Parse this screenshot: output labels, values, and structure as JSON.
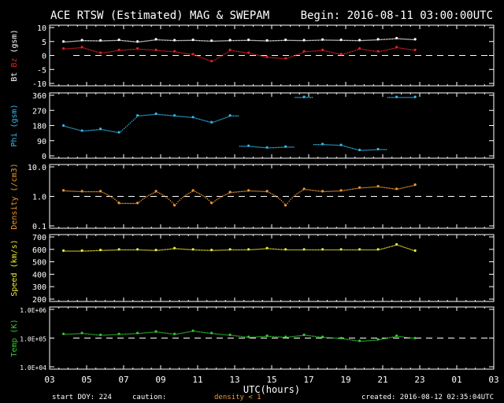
{
  "header": {
    "title": "ACE RTSW (Estimated) MAG & SWEPAM",
    "begin": "Begin: 2016-08-11 03:00:00UTC"
  },
  "footer": {
    "start_doy": "start DOY: 224",
    "caution": "caution:",
    "caution_item": "density < 1",
    "created": "created: 2016-08-12 02:35:04UTC",
    "xlabel": "UTC(hours)"
  },
  "colors": {
    "bt": "#ffffff",
    "bz": "#dd2222",
    "phi": "#33bbee",
    "density": "#ee9933",
    "speed": "#eeee33",
    "temp": "#33cc33",
    "axis": "#ffffff"
  },
  "chart_data": {
    "type": "scatter",
    "x_ticks": [
      "03",
      "05",
      "07",
      "09",
      "11",
      "13",
      "15",
      "17",
      "19",
      "21",
      "23",
      "01",
      "03"
    ],
    "x_range_hours": [
      3,
      27
    ],
    "x": [
      3.75,
      4.75,
      5.75,
      6.75,
      7.75,
      8.75,
      9.75,
      10.75,
      11.75,
      12.75,
      13.75,
      14.75,
      15.75,
      16.75,
      17.75,
      18.75,
      19.75,
      20.75,
      21.75,
      22.75
    ],
    "panels": [
      {
        "id": "mag",
        "ylabel_parts": [
          "Bt",
          "Bz",
          "(gsm)"
        ],
        "ylim": [
          -10,
          10
        ],
        "scale": "linear",
        "ticks": [
          "10",
          "5",
          "0",
          "-5",
          "-10"
        ],
        "tick_values": [
          10,
          5,
          0,
          -5,
          -10
        ],
        "dashed_ref": 0,
        "series": [
          {
            "name": "Bt",
            "color_key": "bt",
            "values": [
              5.0,
              5.5,
              5.4,
              5.6,
              5.0,
              5.8,
              5.5,
              5.6,
              5.3,
              5.5,
              5.6,
              5.4,
              5.6,
              5.5,
              5.7,
              5.6,
              5.5,
              5.8,
              6.2,
              5.8
            ]
          },
          {
            "name": "Bz",
            "color_key": "bz",
            "values": [
              2.5,
              3.0,
              1.0,
              2.0,
              2.5,
              2.0,
              1.5,
              0.5,
              -2.0,
              2.0,
              1.0,
              -0.5,
              -1.0,
              1.5,
              2.0,
              0.5,
              2.5,
              1.5,
              3.0,
              2.0
            ]
          }
        ]
      },
      {
        "id": "phi",
        "ylabel_parts": [
          "Phi (gsm)"
        ],
        "ylim": [
          0,
          360
        ],
        "scale": "linear",
        "ticks": [
          "360",
          "270",
          "180",
          "90",
          "0"
        ],
        "tick_values": [
          360,
          270,
          180,
          90,
          0
        ],
        "series": [
          {
            "name": "Phi",
            "color_key": "phi",
            "values": [
              180,
              150,
              160,
              140,
              240,
              250,
              240,
              230,
              200,
              240,
              60,
              50,
              55,
              350,
              70,
              65,
              35,
              40,
              350,
              350
            ]
          }
        ]
      },
      {
        "id": "density",
        "ylabel_parts": [
          "Density (/cm3)"
        ],
        "ylim": [
          0.1,
          10
        ],
        "scale": "log",
        "ticks": [
          "10.0",
          "1.0",
          "0.1"
        ],
        "tick_values": [
          10,
          1,
          0.1
        ],
        "dashed_ref": 1,
        "series": [
          {
            "name": "Density",
            "color_key": "density",
            "values": [
              1.6,
              1.5,
              1.5,
              0.6,
              0.6,
              1.5,
              0.5,
              1.6,
              0.6,
              1.4,
              1.6,
              1.5,
              0.5,
              1.8,
              1.5,
              1.6,
              2.0,
              2.2,
              1.8,
              2.5
            ]
          }
        ]
      },
      {
        "id": "speed",
        "ylabel_parts": [
          "Speed (km/s)"
        ],
        "ylim": [
          200,
          700
        ],
        "scale": "linear",
        "ticks": [
          "700",
          "600",
          "500",
          "400",
          "300",
          "200"
        ],
        "tick_values": [
          700,
          600,
          500,
          400,
          300,
          200
        ],
        "series": [
          {
            "name": "Speed",
            "color_key": "speed",
            "values": [
              590,
              590,
              595,
              600,
              600,
              595,
              610,
              600,
              595,
              600,
              600,
              610,
              600,
              600,
              600,
              600,
              600,
              600,
              640,
              590
            ]
          }
        ]
      },
      {
        "id": "temp",
        "ylabel_parts": [
          "Temp (K)"
        ],
        "ylim": [
          10000,
          1000000
        ],
        "scale": "log",
        "ticks": [
          "1.0E+06",
          "1.0E+05",
          "1.0E+04"
        ],
        "tick_values": [
          1000000,
          100000,
          10000
        ],
        "dashed_ref": 100000,
        "series": [
          {
            "name": "Temp",
            "color_key": "temp",
            "values": [
              140000,
              150000,
              130000,
              140000,
              150000,
              170000,
              140000,
              180000,
              150000,
              130000,
              110000,
              120000,
              110000,
              130000,
              110000,
              100000,
              80000,
              90000,
              120000,
              100000
            ]
          }
        ]
      }
    ]
  }
}
